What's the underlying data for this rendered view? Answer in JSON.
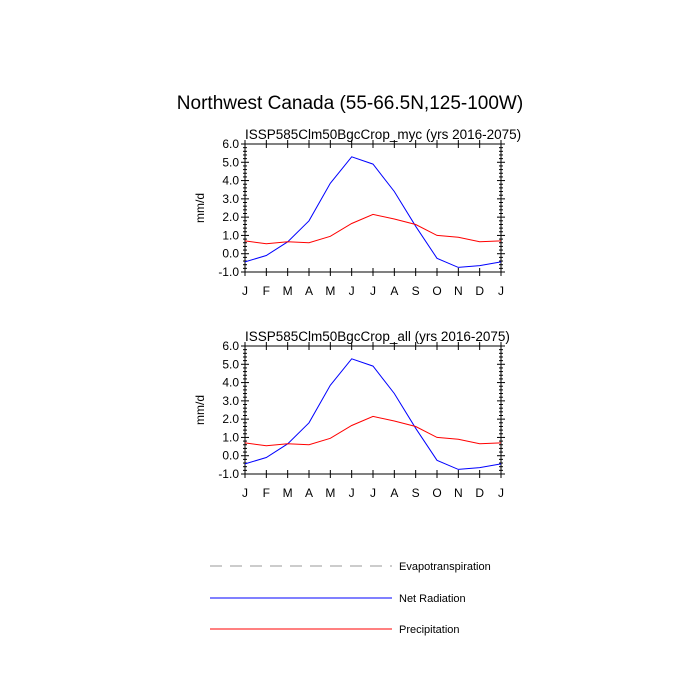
{
  "figure": {
    "title": "Northwest Canada (55-66.5N,125-100W)"
  },
  "chart_data": [
    {
      "type": "line",
      "title": "ISSP585Clm50BgcCrop_myc (yrs 2016-2075)",
      "xlabel": "",
      "ylabel": "mm/d",
      "categories": [
        "J",
        "F",
        "M",
        "A",
        "M",
        "J",
        "J",
        "A",
        "S",
        "O",
        "N",
        "D",
        "J"
      ],
      "ylim": [
        -1.0,
        6.0
      ],
      "yticks": [
        "-1.0",
        "0.0",
        "1.0",
        "2.0",
        "3.0",
        "4.0",
        "5.0",
        "6.0"
      ],
      "series": [
        {
          "name": "Net Radiation",
          "color": "#0000ff",
          "dashed": false,
          "values": [
            -0.45,
            -0.1,
            0.65,
            1.8,
            3.85,
            5.3,
            4.9,
            3.4,
            1.5,
            -0.25,
            -0.75,
            -0.65,
            -0.45
          ]
        },
        {
          "name": "Precipitation",
          "color": "#ff0000",
          "dashed": false,
          "values": [
            0.7,
            0.55,
            0.65,
            0.6,
            0.95,
            1.65,
            2.15,
            1.9,
            1.6,
            1.0,
            0.9,
            0.65,
            0.7
          ]
        }
      ]
    },
    {
      "type": "line",
      "title": "ISSP585Clm50BgcCrop_all (yrs 2016-2075)",
      "xlabel": "",
      "ylabel": "mm/d",
      "categories": [
        "J",
        "F",
        "M",
        "A",
        "M",
        "J",
        "J",
        "A",
        "S",
        "O",
        "N",
        "D",
        "J"
      ],
      "ylim": [
        -1.0,
        6.0
      ],
      "yticks": [
        "-1.0",
        "0.0",
        "1.0",
        "2.0",
        "3.0",
        "4.0",
        "5.0",
        "6.0"
      ],
      "series": [
        {
          "name": "Net Radiation",
          "color": "#0000ff",
          "dashed": false,
          "values": [
            -0.45,
            -0.1,
            0.65,
            1.8,
            3.85,
            5.3,
            4.9,
            3.4,
            1.5,
            -0.25,
            -0.75,
            -0.65,
            -0.45
          ]
        },
        {
          "name": "Precipitation",
          "color": "#ff0000",
          "dashed": false,
          "values": [
            0.7,
            0.55,
            0.65,
            0.6,
            0.95,
            1.65,
            2.15,
            1.9,
            1.6,
            1.0,
            0.9,
            0.65,
            0.7
          ]
        }
      ]
    }
  ],
  "legend": {
    "entries": [
      {
        "label": "Evapotranspiration",
        "color": "#999999",
        "dashed": true
      },
      {
        "label": "Net Radiation",
        "color": "#0000ff",
        "dashed": false
      },
      {
        "label": "Precipitation",
        "color": "#ff0000",
        "dashed": false
      }
    ]
  }
}
